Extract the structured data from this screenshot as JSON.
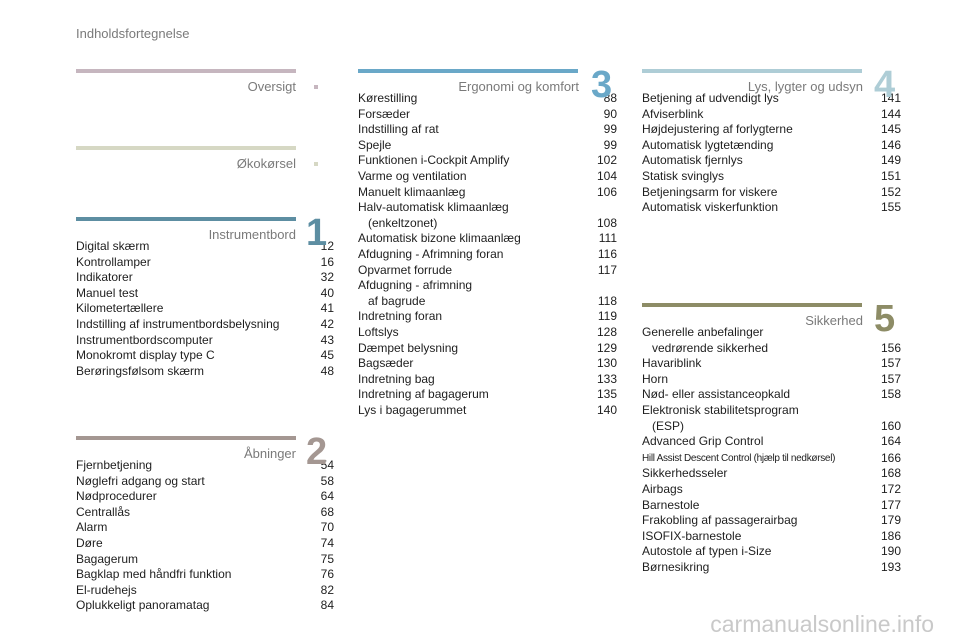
{
  "header": {
    "title": "Indholdsfortegnelse"
  },
  "sections": {
    "oversigt": {
      "title": "Oversigt",
      "color": "#c6b6bf"
    },
    "okokorsel": {
      "title": "Økokørsel",
      "color": "#d6d8c4"
    },
    "instrumentbord": {
      "title": "Instrumentbord",
      "number": "1",
      "color": "#5d8ea2",
      "entries": [
        {
          "label": "Digital skærm",
          "page": "12"
        },
        {
          "label": "Kontrollamper",
          "page": "16"
        },
        {
          "label": "Indikatorer",
          "page": "32"
        },
        {
          "label": "Manuel test",
          "page": "40"
        },
        {
          "label": "Kilometertællere",
          "page": "41"
        },
        {
          "label": "Indstilling af instrumentbordsbelysning",
          "page": "42"
        },
        {
          "label": "Instrumentbordscomputer",
          "page": "43"
        },
        {
          "label": "Monokromt display type C",
          "page": "45"
        },
        {
          "label": "Berøringsfølsom skærm",
          "page": "48"
        }
      ]
    },
    "abninger": {
      "title": "Åbninger",
      "number": "2",
      "color": "#a49792",
      "entries": [
        {
          "label": "Fjernbetjening",
          "page": "54"
        },
        {
          "label": "Nøglefri adgang og start",
          "page": "58"
        },
        {
          "label": "Nødprocedurer",
          "page": "64"
        },
        {
          "label": "Centrallås",
          "page": "68"
        },
        {
          "label": "Alarm",
          "page": "70"
        },
        {
          "label": "Døre",
          "page": "74"
        },
        {
          "label": "Bagagerum",
          "page": "75"
        },
        {
          "label": "Bagklap med håndfri funktion",
          "page": "76"
        },
        {
          "label": "El-rudehejs",
          "page": "82"
        },
        {
          "label": "Oplukkeligt panoramatag",
          "page": "84"
        }
      ]
    },
    "ergonomi": {
      "title": "Ergonomi og komfort",
      "number": "3",
      "color": "#6aa8c8",
      "entries": [
        {
          "label": "Kørestilling",
          "page": "88"
        },
        {
          "label": "Forsæder",
          "page": "90"
        },
        {
          "label": "Indstilling af rat",
          "page": "99"
        },
        {
          "label": "Spejle",
          "page": "99"
        },
        {
          "label": "Funktionen i-Cockpit Amplify",
          "page": "102"
        },
        {
          "label": "Varme og ventilation",
          "page": "104"
        },
        {
          "label": "Manuelt klimaanlæg",
          "page": "106"
        },
        {
          "label": "Halv-automatisk klimaanlæg",
          "label2": "(enkeltzonet)",
          "page": "108"
        },
        {
          "label": "Automatisk bizone klimaanlæg",
          "page": "111"
        },
        {
          "label": "Afdugning - Afrimning foran",
          "page": "116"
        },
        {
          "label": "Opvarmet forrude",
          "page": "117"
        },
        {
          "label": "Afdugning - afrimning",
          "label2": "af bagrude",
          "page": "118"
        },
        {
          "label": "Indretning foran",
          "page": "119"
        },
        {
          "label": "Loftslys",
          "page": "128"
        },
        {
          "label": "Dæmpet belysning",
          "page": "129"
        },
        {
          "label": "Bagsæder",
          "page": "130"
        },
        {
          "label": "Indretning bag",
          "page": "133"
        },
        {
          "label": "Indretning af bagagerum",
          "page": "135"
        },
        {
          "label": "Lys i bagagerummet",
          "page": "140"
        }
      ]
    },
    "lys": {
      "title": "Lys, lygter og udsyn",
      "number": "4",
      "color": "#aecdd6",
      "entries": [
        {
          "label": "Betjening af udvendigt lys",
          "page": "141"
        },
        {
          "label": "Afviserblink",
          "page": "144"
        },
        {
          "label": "Højdejustering af forlygterne",
          "page": "145"
        },
        {
          "label": "Automatisk lygtetænding",
          "page": "146"
        },
        {
          "label": "Automatisk fjernlys",
          "page": "149"
        },
        {
          "label": "Statisk svinglys",
          "page": "151"
        },
        {
          "label": "Betjeningsarm for viskere",
          "page": "152"
        },
        {
          "label": "Automatisk viskerfunktion",
          "page": "155"
        }
      ]
    },
    "sikkerhed": {
      "title": "Sikkerhed",
      "number": "5",
      "color": "#8d8c66",
      "entries": [
        {
          "label": "Generelle anbefalinger",
          "label2": "vedrørende sikkerhed",
          "page": "156"
        },
        {
          "label": "Havariblink",
          "page": "157"
        },
        {
          "label": "Horn",
          "page": "157"
        },
        {
          "label": "Nød- eller assistanceopkald",
          "page": "158"
        },
        {
          "label": "Elektronisk stabilitetsprogram",
          "label2": "(ESP)",
          "page": "160"
        },
        {
          "label": "Advanced Grip Control",
          "page": "164"
        },
        {
          "label": "Hill Assist Descent Control (hjælp til nedkørsel)",
          "page": "166",
          "small": true
        },
        {
          "label": "Sikkerhedsseler",
          "page": "168"
        },
        {
          "label": "Airbags",
          "page": "172"
        },
        {
          "label": "Barnestole",
          "page": "177"
        },
        {
          "label": "Frakobling af passagerairbag",
          "page": "179"
        },
        {
          "label": "ISOFIX-barnestole",
          "page": "186"
        },
        {
          "label": "Autostole af typen i-Size",
          "page": "190"
        },
        {
          "label": "Børnesikring",
          "page": "193"
        }
      ]
    }
  },
  "watermark": "carmanualsonline.info"
}
